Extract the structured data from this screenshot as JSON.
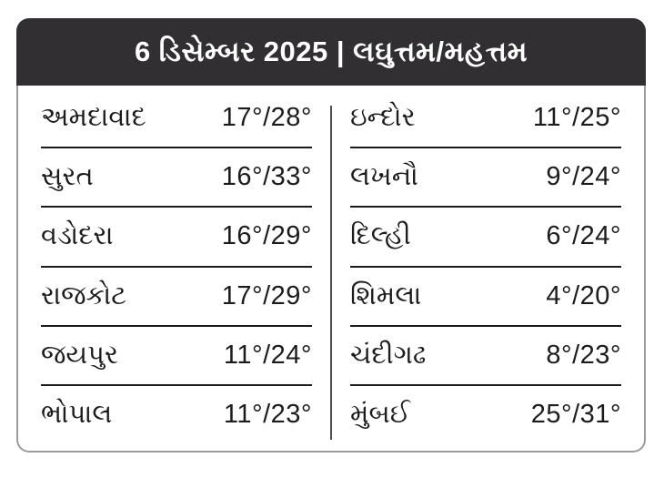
{
  "header": {
    "title": "6 ડિસેમ્બર 2025 | લઘુત્તમ/મહત્તમ"
  },
  "columns": {
    "left": {
      "rows": [
        {
          "city": "અમદાવાદ",
          "temp": "17°/28°"
        },
        {
          "city": "સુરત",
          "temp": "16°/33°"
        },
        {
          "city": "વડોદરા",
          "temp": "16°/29°"
        },
        {
          "city": "રાજકોટ",
          "temp": "17°/29°"
        },
        {
          "city": "જયપુર",
          "temp": "11°/24°"
        },
        {
          "city": "ભોપાલ",
          "temp": "11°/23°"
        }
      ]
    },
    "right": {
      "rows": [
        {
          "city": "ઇન્દોર",
          "temp": "11°/25°"
        },
        {
          "city": "લખનૌ",
          "temp": "9°/24°"
        },
        {
          "city": "દિલ્હી",
          "temp": "6°/24°"
        },
        {
          "city": "શિમલા",
          "temp": "4°/20°"
        },
        {
          "city": "ચંદીગઢ",
          "temp": "8°/23°"
        },
        {
          "city": "મુંબઈ",
          "temp": "25°/31°"
        }
      ]
    }
  },
  "colors": {
    "header_bg": "#312f32",
    "header_text": "#ffffff",
    "body_bg": "#ffffff",
    "row_text": "#1c1c1c",
    "card_border": "#9b9b9b",
    "row_divider": "#1c1c1c",
    "column_divider": "#4d4d4d"
  },
  "chart_data": {
    "type": "table",
    "title": "6 ડિસેમ્બર 2025 | લઘુત્તમ/મહત્તમ",
    "description_labels": {
      "date": "6 ડિસેમ્બર 2025",
      "metric": "લઘુત્તમ/મહત્તમ"
    },
    "unit": "°C",
    "rows": [
      {
        "city": "અમદાવાદ",
        "min": 17,
        "max": 28
      },
      {
        "city": "સુરત",
        "min": 16,
        "max": 33
      },
      {
        "city": "વડોદરા",
        "min": 16,
        "max": 29
      },
      {
        "city": "રાજકોટ",
        "min": 17,
        "max": 29
      },
      {
        "city": "જયપુર",
        "min": 11,
        "max": 24
      },
      {
        "city": "ભોપાલ",
        "min": 11,
        "max": 23
      },
      {
        "city": "ઇન્દોર",
        "min": 11,
        "max": 25
      },
      {
        "city": "લખનૌ",
        "min": 9,
        "max": 24
      },
      {
        "city": "દિલ્હી",
        "min": 6,
        "max": 24
      },
      {
        "city": "શિમલા",
        "min": 4,
        "max": 20
      },
      {
        "city": "ચંદીગઢ",
        "min": 8,
        "max": 23
      },
      {
        "city": "મુંબઈ",
        "min": 25,
        "max": 31
      }
    ],
    "layout": {
      "columns": 2,
      "left_rows": 6,
      "right_rows": 6
    }
  }
}
